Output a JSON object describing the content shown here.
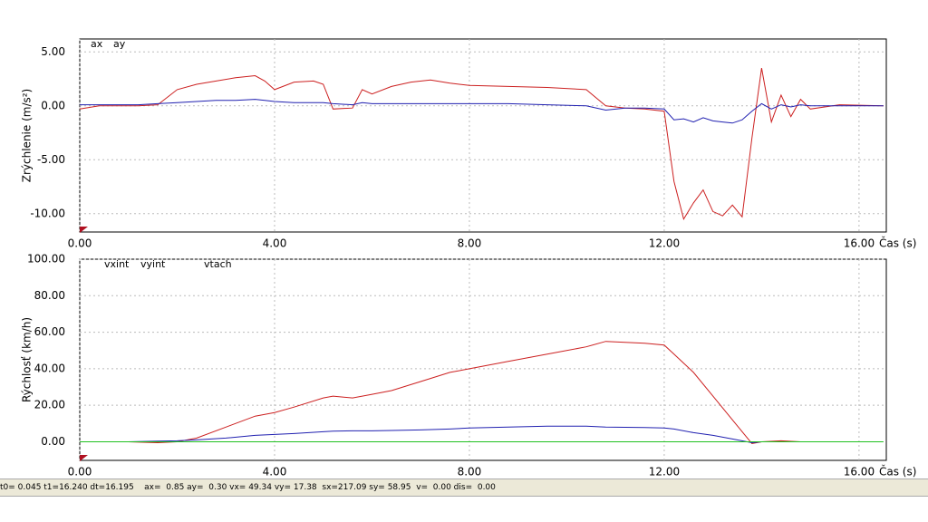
{
  "chart_data": [
    {
      "type": "line",
      "ylabel": "Zrýchlenie (m/s²)",
      "xlabel": "Čas (s)",
      "x": [
        0,
        0.4,
        0.8,
        1.2,
        1.6,
        2.0,
        2.4,
        2.8,
        3.2,
        3.6,
        3.8,
        4.0,
        4.4,
        4.8,
        5.0,
        5.2,
        5.6,
        5.8,
        6.0,
        6.4,
        6.8,
        7.2,
        7.6,
        8.0,
        8.8,
        9.6,
        10.4,
        10.8,
        11.2,
        11.6,
        12.0,
        12.2,
        12.4,
        12.6,
        12.8,
        13.0,
        13.2,
        13.4,
        13.6,
        13.8,
        14.0,
        14.2,
        14.4,
        14.6,
        14.8,
        15.0,
        15.6,
        16.5
      ],
      "series": [
        {
          "name": "ax",
          "color": "#cc2020",
          "values": [
            -0.3,
            0,
            0,
            0,
            0.1,
            1.5,
            2.0,
            2.3,
            2.6,
            2.8,
            2.3,
            1.5,
            2.2,
            2.3,
            2.0,
            -0.3,
            -0.2,
            1.5,
            1.1,
            1.8,
            2.2,
            2.4,
            2.1,
            1.9,
            1.8,
            1.7,
            1.5,
            0,
            -0.2,
            -0.3,
            -0.5,
            -7,
            -10.5,
            -9,
            -7.8,
            -9.8,
            -10.2,
            -9.2,
            -10.3,
            -3,
            3.5,
            -1.5,
            1.0,
            -1.0,
            0.6,
            -0.3,
            0.1,
            0
          ]
        },
        {
          "name": "ay",
          "color": "#2020b0",
          "values": [
            0.1,
            0.1,
            0.1,
            0.1,
            0.2,
            0.3,
            0.4,
            0.5,
            0.5,
            0.6,
            0.5,
            0.4,
            0.3,
            0.3,
            0.3,
            0.2,
            0.1,
            0.3,
            0.2,
            0.2,
            0.2,
            0.2,
            0.2,
            0.2,
            0.2,
            0.1,
            0.0,
            -0.4,
            -0.2,
            -0.2,
            -0.3,
            -1.3,
            -1.2,
            -1.5,
            -1.1,
            -1.4,
            -1.5,
            -1.6,
            -1.3,
            -0.5,
            0.2,
            -0.3,
            0.1,
            -0.1,
            0.1,
            0,
            0,
            0
          ]
        }
      ],
      "xlim": [
        0,
        16.56
      ],
      "ylim": [
        -11.7,
        6.2
      ],
      "xticks": [
        {
          "value": 0,
          "label": "0.00"
        },
        {
          "value": 4,
          "label": "4.00"
        },
        {
          "value": 8,
          "label": "8.00"
        },
        {
          "value": 12,
          "label": "12.00"
        },
        {
          "value": 16,
          "label": "16.00"
        }
      ],
      "yticks": [
        {
          "value": 5,
          "label": "5.00"
        },
        {
          "value": 0,
          "label": "0.00"
        },
        {
          "value": -5,
          "label": "-5.00"
        },
        {
          "value": -10,
          "label": "-10.00"
        }
      ],
      "grid": true
    },
    {
      "type": "line",
      "ylabel": "Rýchlosť (km/h)",
      "xlabel": "Čas (s)",
      "x": [
        0,
        1,
        1.6,
        2.0,
        2.4,
        3.0,
        3.6,
        4.0,
        4.4,
        5.0,
        5.2,
        5.6,
        6.0,
        6.4,
        7.0,
        7.6,
        8.0,
        8.8,
        9.6,
        10.4,
        10.8,
        11.6,
        12.0,
        12.2,
        12.6,
        13.0,
        13.4,
        13.8,
        14.0,
        14.4,
        14.8
      ],
      "series": [
        {
          "name": "vxint",
          "color": "#cc2020",
          "values": [
            0,
            0,
            -0.5,
            0,
            2,
            8,
            14,
            16,
            19,
            24,
            25,
            24,
            26,
            28,
            33,
            38,
            40,
            44,
            48,
            52,
            55,
            54,
            53,
            48,
            38,
            25,
            12,
            -1,
            0,
            0.5,
            0
          ]
        },
        {
          "name": "vyint",
          "color": "#2020b0",
          "values": [
            0,
            0,
            0.3,
            0.5,
            1,
            2,
            3.5,
            4,
            4.5,
            5.5,
            5.8,
            6,
            6,
            6.2,
            6.5,
            7,
            7.5,
            8,
            8.5,
            8.5,
            8,
            7.8,
            7.5,
            7,
            5,
            3.5,
            1.5,
            -0.5,
            0,
            0,
            0
          ]
        },
        {
          "name": "vtach",
          "color": "#20c020",
          "x": [
            0,
            16.5
          ],
          "values": [
            0,
            0
          ]
        }
      ],
      "xlim": [
        0,
        16.56
      ],
      "ylim": [
        -10.2,
        100
      ],
      "xticks": [
        {
          "value": 0,
          "label": "0.00"
        },
        {
          "value": 4,
          "label": "4.00"
        },
        {
          "value": 8,
          "label": "8.00"
        },
        {
          "value": 12,
          "label": "12.00"
        },
        {
          "value": 16,
          "label": "16.00"
        }
      ],
      "yticks": [
        {
          "value": 100,
          "label": "100.00"
        },
        {
          "value": 80,
          "label": "80.00"
        },
        {
          "value": 60,
          "label": "60.00"
        },
        {
          "value": 40,
          "label": "40.00"
        },
        {
          "value": 20,
          "label": "20.00"
        },
        {
          "value": 0,
          "label": "0.00"
        }
      ],
      "grid": true
    }
  ],
  "status_bar": {
    "text": "t0= 0.045 t1=16.240 dt=16.195    ax=  0.85 ay=  0.30 vx= 49.34 vy= 17.38  sx=217.09 sy= 58.95  v=  0.00 dis=  0.00"
  }
}
